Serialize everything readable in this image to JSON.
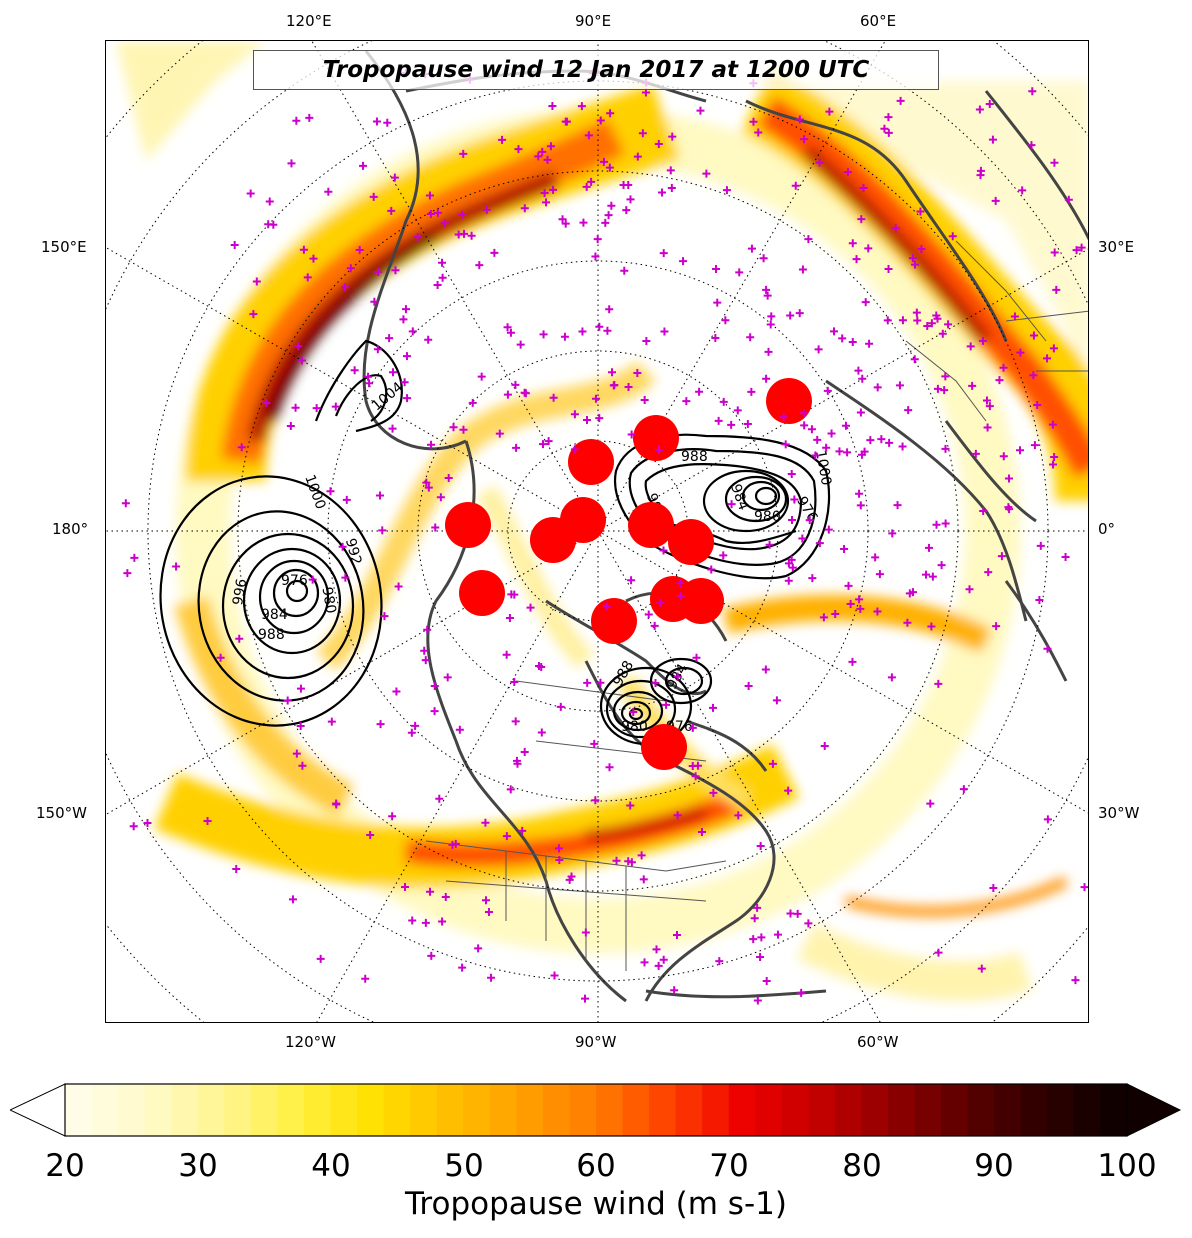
{
  "title": "Tropopause wind 12 Jan 2017 at 1200 UTC",
  "colorbar": {
    "label": "Tropopause wind (m s-1)",
    "ticks": [
      "20",
      "30",
      "40",
      "50",
      "60",
      "70",
      "80",
      "90",
      "100"
    ],
    "range": [
      20,
      100
    ],
    "extend": "both",
    "colors": [
      "#fffde8",
      "#fff9c6",
      "#fff58f",
      "#ffef40",
      "#ffe000",
      "#ffc000",
      "#ffa000",
      "#ff7c00",
      "#ff4000",
      "#ee0000",
      "#c40000",
      "#900000",
      "#5c0000",
      "#300000",
      "#100000"
    ]
  },
  "longitude_labels": {
    "top": [
      "120°E",
      "90°E",
      "60°E"
    ],
    "bottom": [
      "120°W",
      "90°W",
      "60°W"
    ],
    "left": [
      "150°E",
      "180°",
      "150°W"
    ],
    "right": [
      "30°E",
      "0°",
      "30°W"
    ]
  },
  "contours": {
    "color": "#000000",
    "labels": [
      "1000",
      "996",
      "992",
      "988",
      "984",
      "980",
      "976",
      "988",
      "984",
      "980",
      "976",
      "992",
      "996",
      "1000",
      "1004",
      "988",
      "984",
      "980",
      "976"
    ]
  },
  "markers": {
    "plus_color": "#cc00cc",
    "circle_color": "#ff0000"
  },
  "coastline_color": "#444444"
}
